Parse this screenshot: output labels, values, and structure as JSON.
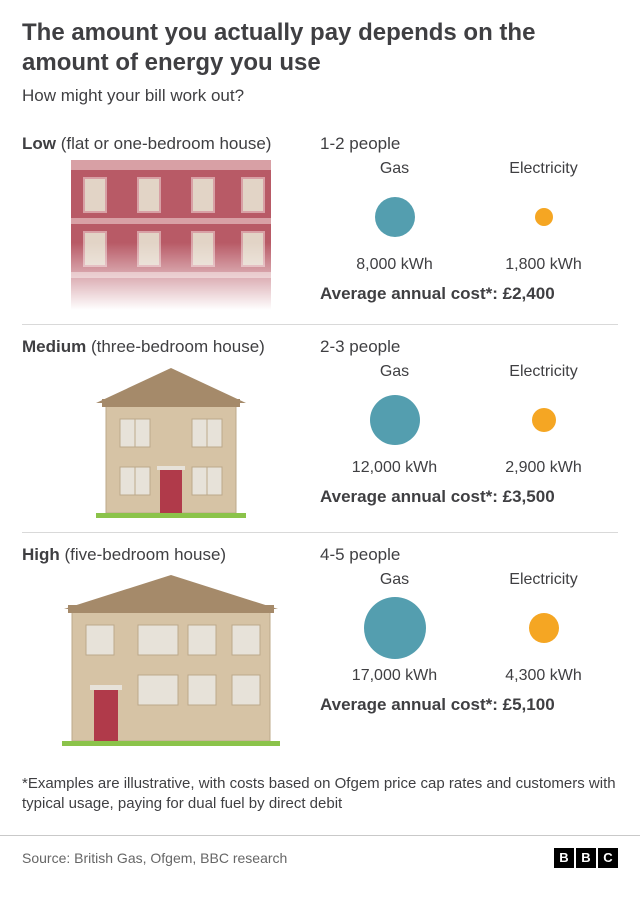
{
  "title": "The amount you actually pay depends on the amount of energy you use",
  "subtitle": "How might your bill work out?",
  "colors": {
    "gas": "#549eaf",
    "electricity": "#f5a623",
    "text": "#3f3f42",
    "divider": "#d9d9d9",
    "footer_border": "#c9c9c9",
    "house_wall": "#d6c3a5",
    "house_roof": "#a58a6a",
    "house_door": "#b03a4a",
    "house_window": "#e7e2d9",
    "house_grass": "#8bc34a",
    "flat_wall": "#b85a66",
    "flat_trim": "#d8a0a5",
    "flat_window": "#e2d4c6"
  },
  "labels": {
    "gas": "Gas",
    "electricity": "Electricity",
    "cost_prefix": "Average annual cost*: "
  },
  "bubble_sizes": {
    "low": {
      "gas": 40,
      "electricity": 18
    },
    "medium": {
      "gas": 50,
      "electricity": 24
    },
    "high": {
      "gas": 62,
      "electricity": 30
    }
  },
  "tiers": [
    {
      "key": "low",
      "name_bold": "Low",
      "name_desc": "(flat or one-bedroom house)",
      "people": "1-2 people",
      "gas": "8,000 kWh",
      "electricity": "1,800 kWh",
      "cost": "£2,400",
      "illustration": "flat"
    },
    {
      "key": "medium",
      "name_bold": "Medium",
      "name_desc": "(three-bedroom house)",
      "people": "2-3 people",
      "gas": "12,000 kWh",
      "electricity": "2,900 kWh",
      "cost": "£3,500",
      "illustration": "house2"
    },
    {
      "key": "high",
      "name_bold": "High",
      "name_desc": "(five-bedroom house)",
      "people": "4-5 people",
      "gas": "17,000 kWh",
      "electricity": "4,300 kWh",
      "cost": "£5,100",
      "illustration": "house3"
    }
  ],
  "footnote": "*Examples are illustrative, with costs based on Ofgem price cap rates and customers with typical usage, paying for dual fuel by direct debit",
  "source": "Source: British Gas, Ofgem, BBC research",
  "logo": [
    "B",
    "B",
    "C"
  ]
}
